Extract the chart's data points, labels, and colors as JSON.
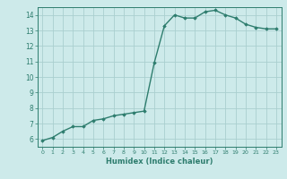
{
  "x": [
    0,
    1,
    2,
    3,
    4,
    5,
    6,
    7,
    8,
    9,
    10,
    11,
    12,
    13,
    14,
    15,
    16,
    17,
    18,
    19,
    20,
    21,
    22,
    23
  ],
  "y": [
    5.9,
    6.1,
    6.5,
    6.8,
    6.8,
    7.2,
    7.3,
    7.5,
    7.6,
    7.7,
    7.8,
    10.9,
    13.3,
    14.0,
    13.8,
    13.8,
    14.2,
    14.3,
    14.0,
    13.8,
    13.4,
    13.2,
    13.1,
    13.1
  ],
  "xlim": [
    -0.5,
    23.5
  ],
  "ylim": [
    5.5,
    14.5
  ],
  "yticks": [
    6,
    7,
    8,
    9,
    10,
    11,
    12,
    13,
    14
  ],
  "xticks": [
    0,
    1,
    2,
    3,
    4,
    5,
    6,
    7,
    8,
    9,
    10,
    11,
    12,
    13,
    14,
    15,
    16,
    17,
    18,
    19,
    20,
    21,
    22,
    23
  ],
  "xlabel": "Humidex (Indice chaleur)",
  "line_color": "#2e7d6e",
  "bg_color": "#cdeaea",
  "grid_color": "#aacfcf",
  "marker": "D",
  "marker_size": 1.8,
  "line_width": 1.0
}
